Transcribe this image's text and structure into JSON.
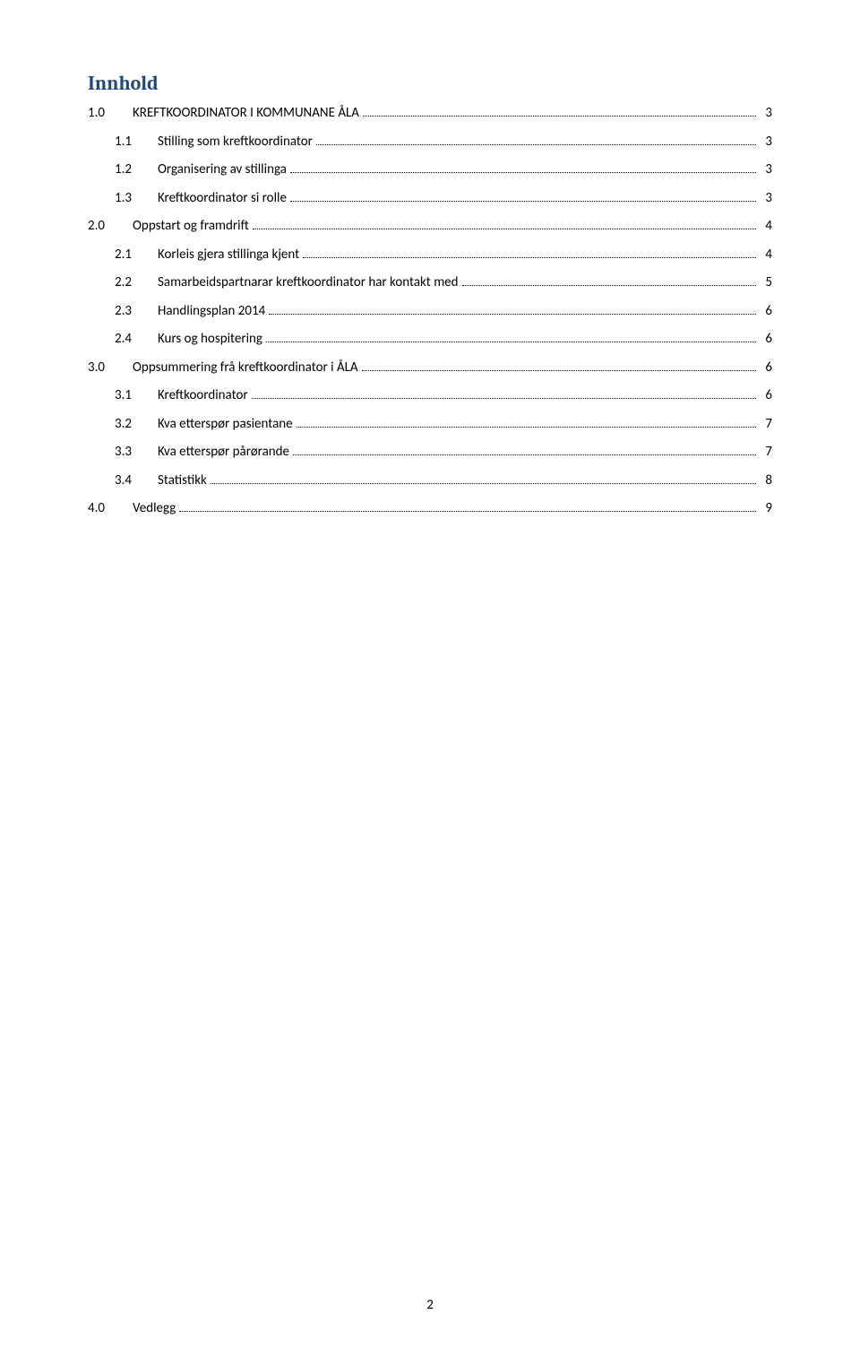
{
  "title": "Innhold",
  "page_number": "2",
  "colors": {
    "title_color": "#1f497d",
    "text_color": "#000000",
    "background": "#ffffff"
  },
  "typography": {
    "title_font": "Cambria",
    "title_size_pt": 16,
    "body_font": "Calibri",
    "body_size_pt": 11
  },
  "toc": [
    {
      "level": 1,
      "num": "1.0",
      "text": "KREFTKOORDINATOR I KOMMUNANE ÅLA",
      "page": "3"
    },
    {
      "level": 2,
      "num": "1.1",
      "text": "Stilling som kreftkoordinator",
      "page": "3"
    },
    {
      "level": 2,
      "num": "1.2",
      "text": "Organisering av stillinga",
      "page": "3"
    },
    {
      "level": 2,
      "num": "1.3",
      "text": "Kreftkoordinator si rolle",
      "page": "3"
    },
    {
      "level": 1,
      "num": "2.0",
      "text": "Oppstart og framdrift",
      "page": "4"
    },
    {
      "level": 2,
      "num": "2.1",
      "text": "Korleis gjera stillinga kjent",
      "page": "4"
    },
    {
      "level": 2,
      "num": "2.2",
      "text": "Samarbeidspartnarar kreftkoordinator har kontakt med",
      "page": "5"
    },
    {
      "level": 2,
      "num": "2.3",
      "text": "Handlingsplan 2014",
      "page": "6"
    },
    {
      "level": 2,
      "num": "2.4",
      "text": "Kurs og hospitering",
      "page": "6"
    },
    {
      "level": 1,
      "num": "3.0",
      "text": "Oppsummering frå kreftkoordinator i ÅLA",
      "page": "6"
    },
    {
      "level": 2,
      "num": "3.1",
      "text": "Kreftkoordinator",
      "page": "6"
    },
    {
      "level": 2,
      "num": "3.2",
      "text": "Kva etterspør pasientane",
      "page": "7"
    },
    {
      "level": 2,
      "num": "3.3",
      "text": "Kva etterspør pårørande",
      "page": "7"
    },
    {
      "level": 2,
      "num": "3.4",
      "text": "Statistikk",
      "page": "8"
    },
    {
      "level": 1,
      "num": "4.0",
      "text": "Vedlegg",
      "page": "9"
    }
  ]
}
